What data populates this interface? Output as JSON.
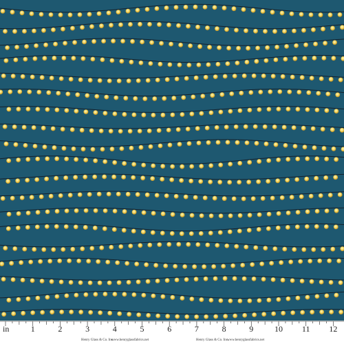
{
  "ruler": {
    "unit": "in",
    "labels": [
      1,
      2,
      3,
      4,
      5,
      6,
      7,
      8,
      9,
      10,
      11,
      12
    ]
  },
  "footer": {
    "brand_left": "Henry Glass & Co. Inc.",
    "url_left": "www.henryglassfabrics.net",
    "brand_right": "Henry Glass & Co. Inc.",
    "url_right": "www.henryglassfabrics.net"
  }
}
